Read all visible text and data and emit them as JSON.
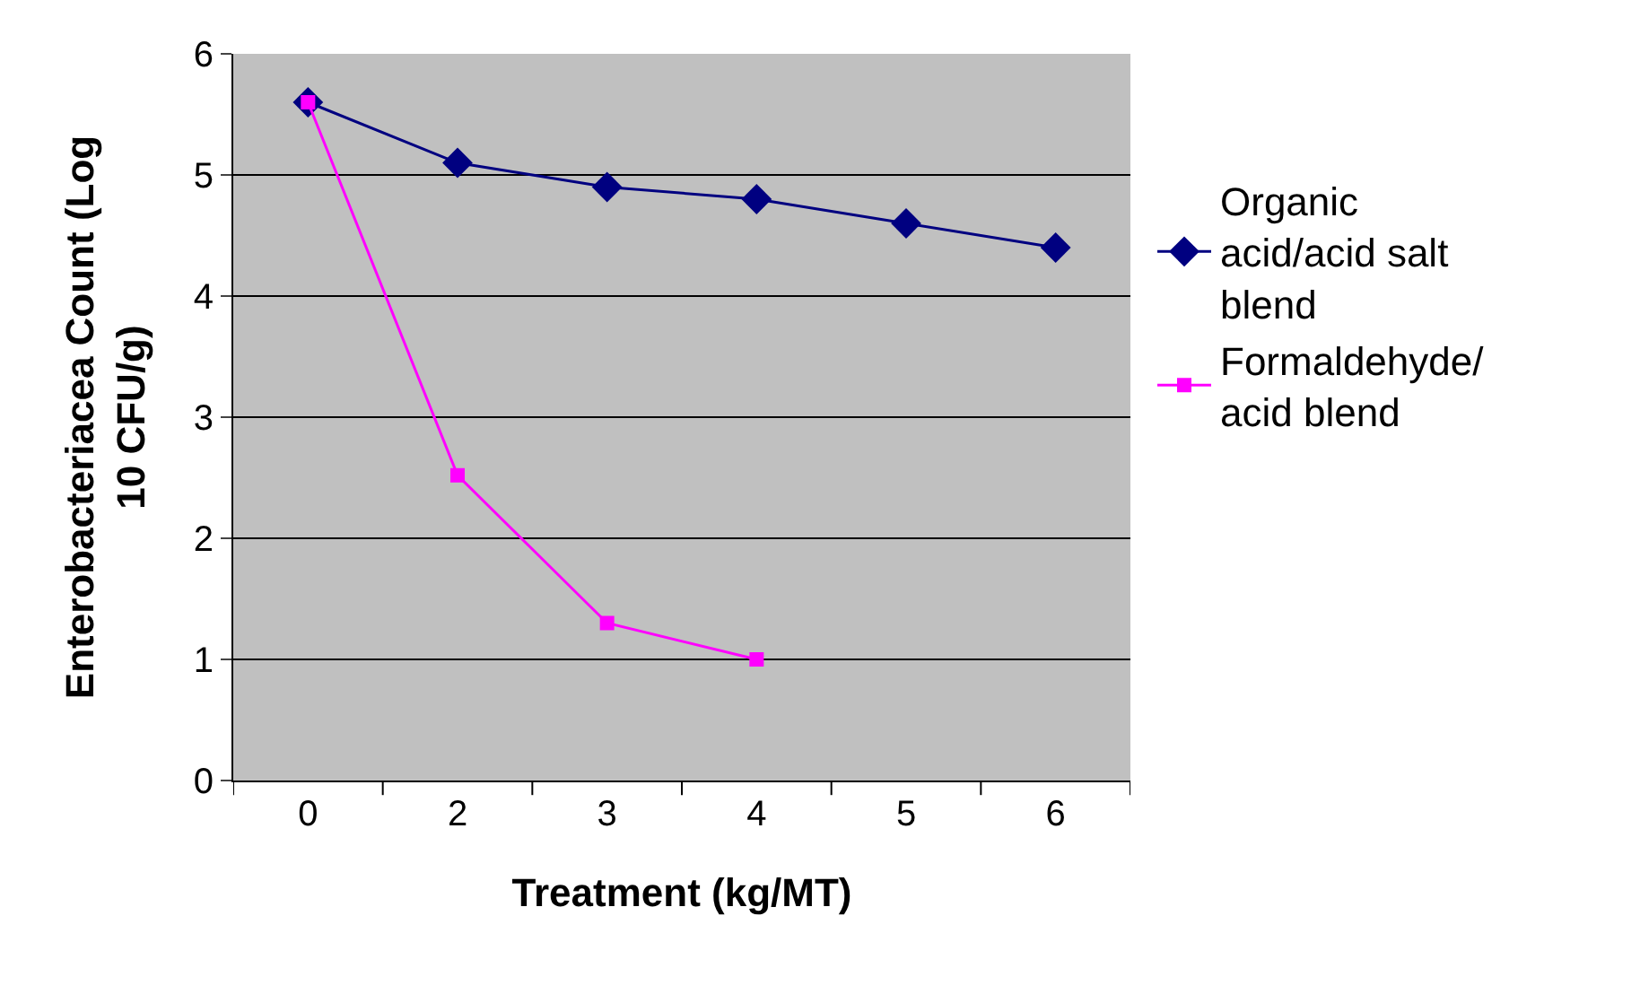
{
  "chart_data": {
    "type": "line",
    "xlabel": "Treatment (kg/MT)",
    "ylabel": "Enterobacteriacea Count (Log 10 CFU/g)",
    "categories": [
      "0",
      "2",
      "3",
      "4",
      "5",
      "6"
    ],
    "series": [
      {
        "name": "Organic acid/acid salt blend",
        "color": "#000080",
        "marker": "diamond",
        "values": [
          5.6,
          5.1,
          4.9,
          4.8,
          4.6,
          4.4
        ]
      },
      {
        "name": "Formaldehyde/ acid blend",
        "color": "#ff00ff",
        "marker": "square",
        "values": [
          5.6,
          2.52,
          1.3,
          1.0,
          null,
          null
        ]
      }
    ],
    "ylim": [
      0,
      6
    ],
    "yticks": [
      0,
      1,
      2,
      3,
      4,
      5,
      6
    ],
    "grid": "y",
    "legend": "right",
    "line_style": "solid"
  }
}
